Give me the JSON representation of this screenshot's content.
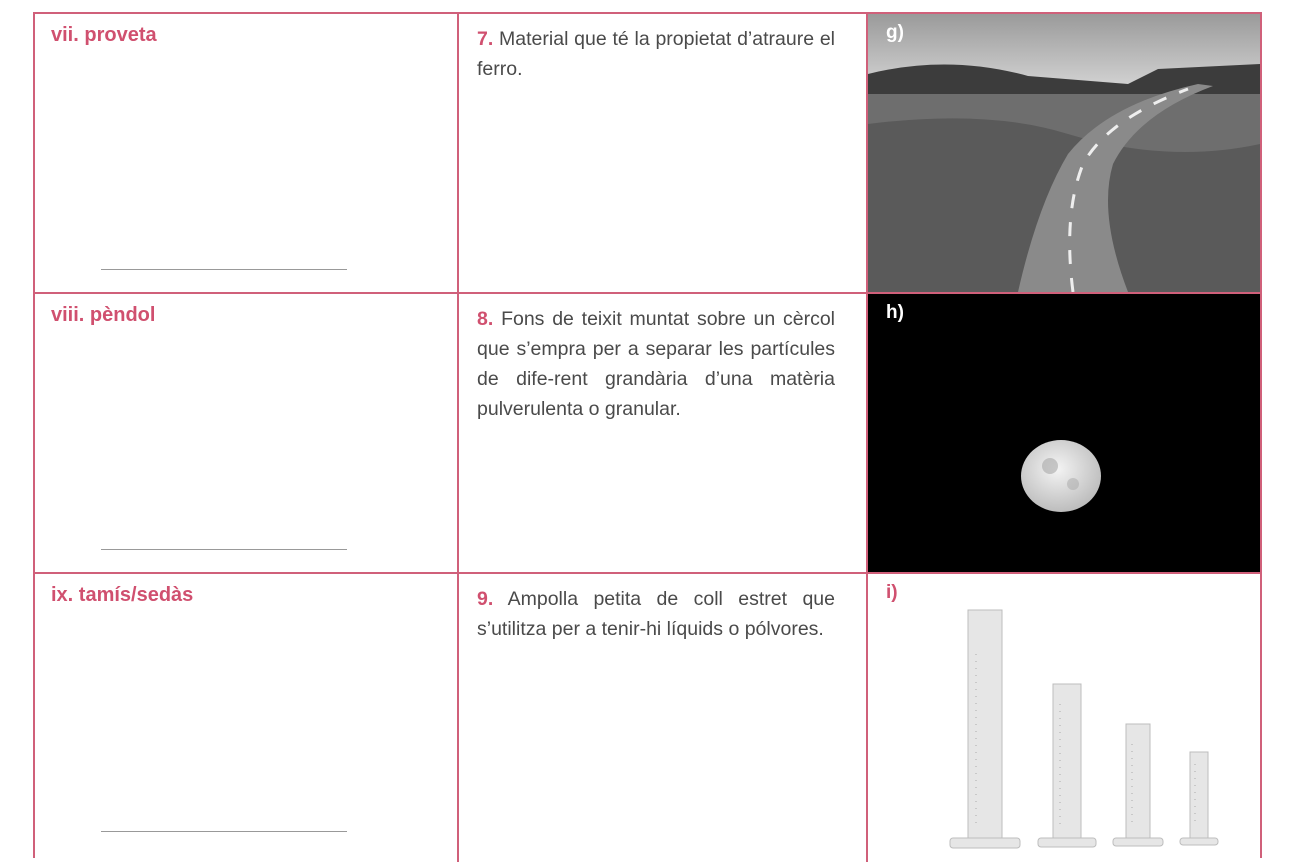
{
  "table": {
    "rows": [
      {
        "term": "vii. proveta",
        "number": "7.",
        "definition": "Material que té la propietat d’atraure el ferro.",
        "image_label": "g)"
      },
      {
        "term": "viii. pèndol",
        "number": "8.",
        "definition": "Fons de teixit muntat sobre un cèrcol que s’empra per a separar les partícules de dife-rent grandària d’una matèria pulverulenta o granular.",
        "image_label": "h)"
      },
      {
        "term": "ix. tamís/sedàs",
        "number": "9.",
        "definition": "Ampolla petita de coll estret que s’utilitza per a tenir-hi líquids o pólvores.",
        "image_label": "i)"
      }
    ]
  }
}
